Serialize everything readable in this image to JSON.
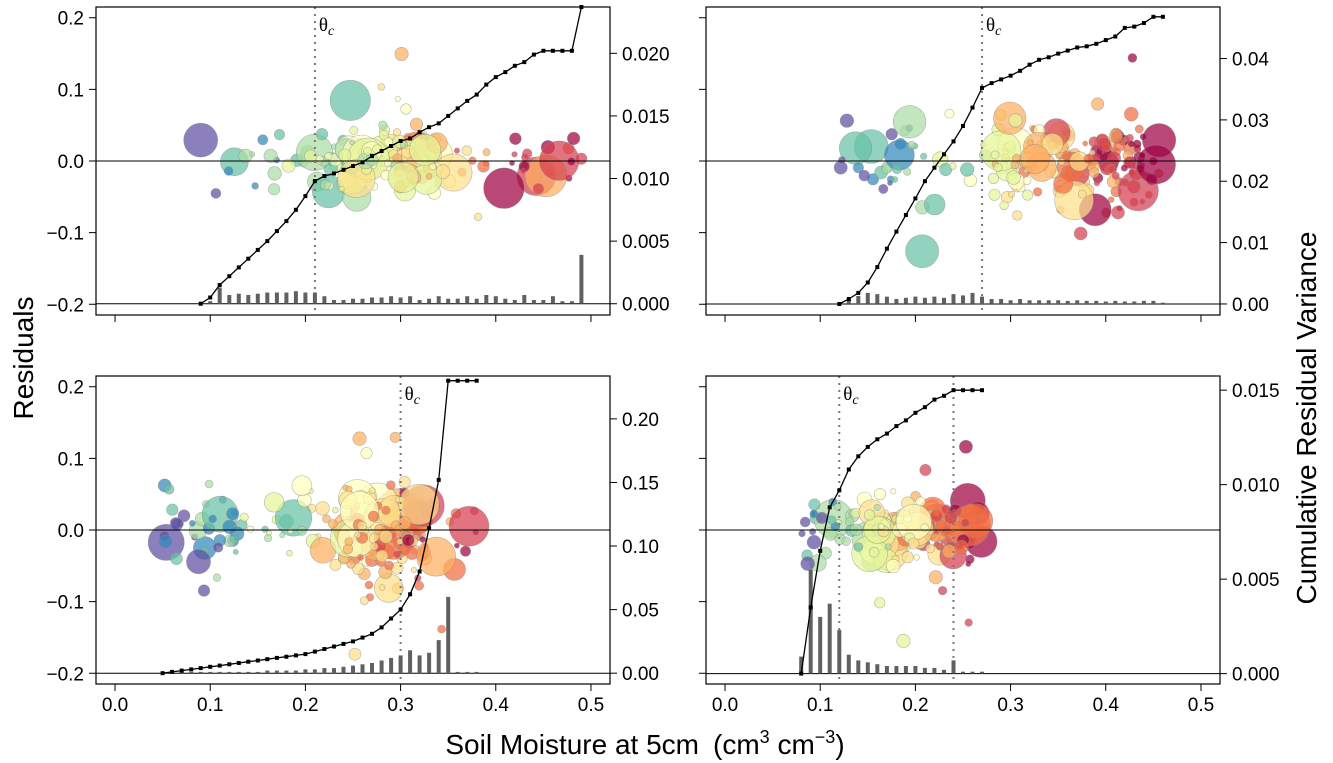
{
  "figure": {
    "ylabel_left": "Residuals",
    "ylabel_right": "Cumulative Residual Variance",
    "xlabel_main": "Soil Moisture at 5cm",
    "xlabel_unit_open": "(cm",
    "xlabel_unit_exp1": "3",
    "xlabel_unit_mid": " cm",
    "xlabel_unit_exp2": "−3",
    "xlabel_unit_close": ")",
    "theta_symbol": "θ",
    "theta_sub": "c",
    "point_palette": [
      "#9e0142",
      "#d53e4f",
      "#f46d43",
      "#fdae61",
      "#fee08b",
      "#ffffbf",
      "#e6f598",
      "#abdda4",
      "#66c2a5",
      "#3288bd",
      "#5e4fa2"
    ],
    "line_color": "#000000",
    "bar_color": "#606060"
  },
  "chart_data": [
    {
      "type": "scatter",
      "panel": "top-left",
      "xlim": [
        -0.02,
        0.52
      ],
      "ylim": [
        -0.215,
        0.215
      ],
      "y2lim": [
        -0.0009,
        0.0237
      ],
      "x_ticks": [
        "0.0",
        "0.1",
        "0.2",
        "0.3",
        "0.4",
        "0.5"
      ],
      "x_tick_values": [
        0,
        0.1,
        0.2,
        0.3,
        0.4,
        0.5
      ],
      "show_x_tick_labels": false,
      "y_ticks": [
        "0.2",
        "0.1",
        "0.0",
        "−0.1",
        "−0.2"
      ],
      "y_tick_values": [
        0.2,
        0.1,
        0,
        -0.1,
        -0.2
      ],
      "y2_ticks": [
        "0.020",
        "0.015",
        "0.010",
        "0.005",
        "0.000"
      ],
      "y2_tick_values": [
        0.02,
        0.015,
        0.01,
        0.005,
        0.0
      ],
      "theta_c": [
        0.21
      ],
      "theta_label_at": 0.21,
      "cumulative_curve": {
        "x": [
          0.09,
          0.1,
          0.11,
          0.12,
          0.13,
          0.14,
          0.15,
          0.16,
          0.17,
          0.18,
          0.19,
          0.2,
          0.21,
          0.22,
          0.23,
          0.24,
          0.25,
          0.26,
          0.27,
          0.28,
          0.29,
          0.3,
          0.31,
          0.32,
          0.33,
          0.34,
          0.35,
          0.36,
          0.37,
          0.38,
          0.39,
          0.4,
          0.41,
          0.42,
          0.43,
          0.44,
          0.45,
          0.46,
          0.47,
          0.48,
          0.49
        ],
        "y": [
          0.0,
          0.0005,
          0.0015,
          0.0022,
          0.0029,
          0.0036,
          0.0043,
          0.005,
          0.0058,
          0.0066,
          0.0075,
          0.0086,
          0.0098,
          0.0102,
          0.0104,
          0.0107,
          0.011,
          0.0113,
          0.0118,
          0.0122,
          0.0126,
          0.013,
          0.0132,
          0.0137,
          0.0141,
          0.0144,
          0.015,
          0.0156,
          0.0162,
          0.0167,
          0.0175,
          0.0181,
          0.0185,
          0.019,
          0.0193,
          0.0199,
          0.0202,
          0.0202,
          0.0202,
          0.0202,
          0.0237
        ]
      },
      "variance_bars": {
        "x": [
          0.1,
          0.11,
          0.12,
          0.13,
          0.14,
          0.15,
          0.16,
          0.17,
          0.18,
          0.19,
          0.2,
          0.21,
          0.22,
          0.23,
          0.24,
          0.25,
          0.26,
          0.27,
          0.28,
          0.29,
          0.3,
          0.31,
          0.32,
          0.33,
          0.34,
          0.35,
          0.36,
          0.37,
          0.38,
          0.39,
          0.4,
          0.41,
          0.42,
          0.43,
          0.44,
          0.45,
          0.46,
          0.47,
          0.48,
          0.49
        ],
        "y": [
          0.0002,
          0.0013,
          0.0007,
          0.0008,
          0.0007,
          0.0008,
          0.0009,
          0.0009,
          0.0009,
          0.001,
          0.0009,
          0.0009,
          0.0006,
          0.0003,
          0.0003,
          0.0004,
          0.0004,
          0.0005,
          0.0005,
          0.0006,
          0.0005,
          0.0006,
          0.0003,
          0.0004,
          0.0006,
          0.0004,
          0.0004,
          0.0006,
          0.0004,
          0.0007,
          0.0006,
          0.0004,
          0.0003,
          0.0007,
          0.0003,
          0.0003,
          0.0006,
          0.0002,
          0.0002,
          0.0039
        ]
      },
      "scatter": {
        "x_range": [
          0.09,
          0.49
        ],
        "core": [
          0.22,
          0.34
        ],
        "y_center": 0.002,
        "spread": 0.03,
        "count": 190,
        "seed": 11
      }
    },
    {
      "type": "scatter",
      "panel": "top-right",
      "xlim": [
        -0.02,
        0.52
      ],
      "ylim": [
        -0.215,
        0.215
      ],
      "y2lim": [
        -0.0018,
        0.0484
      ],
      "x_ticks": [
        "0.0",
        "0.1",
        "0.2",
        "0.3",
        "0.4",
        "0.5"
      ],
      "x_tick_values": [
        0,
        0.1,
        0.2,
        0.3,
        0.4,
        0.5
      ],
      "show_x_tick_labels": false,
      "y_ticks": [],
      "y_tick_values": [
        0.2,
        0.1,
        0,
        -0.1,
        -0.2
      ],
      "y2_ticks": [
        "0.04",
        "0.03",
        "0.02",
        "0.01",
        "0.00"
      ],
      "y2_tick_values": [
        0.04,
        0.03,
        0.02,
        0.01,
        0.0
      ],
      "theta_c": [
        0.27
      ],
      "theta_label_at": 0.27,
      "cumulative_curve": {
        "x": [
          0.12,
          0.13,
          0.14,
          0.15,
          0.16,
          0.17,
          0.18,
          0.19,
          0.2,
          0.21,
          0.22,
          0.23,
          0.24,
          0.25,
          0.26,
          0.27,
          0.28,
          0.29,
          0.3,
          0.31,
          0.32,
          0.33,
          0.34,
          0.35,
          0.36,
          0.37,
          0.38,
          0.39,
          0.4,
          0.41,
          0.42,
          0.43,
          0.44,
          0.45,
          0.46
        ],
        "y": [
          0.0,
          0.0008,
          0.0018,
          0.0035,
          0.006,
          0.009,
          0.0118,
          0.0145,
          0.0172,
          0.02,
          0.0222,
          0.0244,
          0.0265,
          0.029,
          0.032,
          0.0352,
          0.036,
          0.0366,
          0.0372,
          0.038,
          0.039,
          0.0398,
          0.0402,
          0.0408,
          0.0413,
          0.0418,
          0.042,
          0.0424,
          0.043,
          0.0436,
          0.045,
          0.0452,
          0.0458,
          0.0468,
          0.0468
        ]
      },
      "variance_bars": {
        "x": [
          0.13,
          0.14,
          0.15,
          0.16,
          0.17,
          0.18,
          0.19,
          0.2,
          0.21,
          0.22,
          0.23,
          0.24,
          0.25,
          0.26,
          0.27,
          0.28,
          0.29,
          0.3,
          0.31,
          0.32,
          0.33,
          0.34,
          0.35,
          0.36,
          0.37,
          0.38,
          0.39,
          0.4,
          0.41,
          0.42,
          0.43,
          0.44,
          0.45,
          0.46
        ],
        "y": [
          0.0008,
          0.0013,
          0.0018,
          0.0016,
          0.0012,
          0.0008,
          0.001,
          0.0012,
          0.001,
          0.0012,
          0.001,
          0.0016,
          0.0014,
          0.0018,
          0.0012,
          0.0008,
          0.0008,
          0.0006,
          0.0008,
          0.0006,
          0.0006,
          0.0006,
          0.0006,
          0.0005,
          0.0006,
          0.0005,
          0.0005,
          0.0004,
          0.0005,
          0.0004,
          0.0004,
          0.0005,
          0.0005,
          0.0002
        ]
      },
      "scatter": {
        "x_range": [
          0.12,
          0.46
        ],
        "core": [
          0.28,
          0.44
        ],
        "y_center": 0.0,
        "spread": 0.04,
        "count": 210,
        "seed": 23
      }
    },
    {
      "type": "scatter",
      "panel": "bottom-left",
      "xlim": [
        -0.02,
        0.52
      ],
      "ylim": [
        -0.215,
        0.215
      ],
      "y2lim": [
        -0.0085,
        0.2337
      ],
      "x_ticks": [
        "0.0",
        "0.1",
        "0.2",
        "0.3",
        "0.4",
        "0.5"
      ],
      "x_tick_values": [
        0,
        0.1,
        0.2,
        0.3,
        0.4,
        0.5
      ],
      "show_x_tick_labels": true,
      "y_ticks": [
        "0.2",
        "0.1",
        "0.0",
        "−0.1",
        "−0.2"
      ],
      "y_tick_values": [
        0.2,
        0.1,
        0,
        -0.1,
        -0.2
      ],
      "y2_ticks": [
        "0.20",
        "0.15",
        "0.10",
        "0.05",
        "0.00"
      ],
      "y2_tick_values": [
        0.2,
        0.15,
        0.1,
        0.05,
        0.0
      ],
      "theta_c": [
        0.3
      ],
      "theta_label_at": 0.3,
      "cumulative_curve": {
        "x": [
          0.05,
          0.06,
          0.07,
          0.08,
          0.09,
          0.1,
          0.11,
          0.12,
          0.13,
          0.14,
          0.15,
          0.16,
          0.17,
          0.18,
          0.19,
          0.2,
          0.21,
          0.22,
          0.23,
          0.24,
          0.25,
          0.26,
          0.27,
          0.28,
          0.29,
          0.3,
          0.31,
          0.32,
          0.33,
          0.34,
          0.35,
          0.36,
          0.37,
          0.38
        ],
        "y": [
          0.0,
          0.001,
          0.002,
          0.003,
          0.004,
          0.005,
          0.006,
          0.007,
          0.008,
          0.009,
          0.01,
          0.011,
          0.012,
          0.013,
          0.014,
          0.015,
          0.017,
          0.019,
          0.021,
          0.023,
          0.025,
          0.028,
          0.031,
          0.036,
          0.043,
          0.05,
          0.062,
          0.08,
          0.114,
          0.152,
          0.23,
          0.23,
          0.23,
          0.23
        ]
      },
      "variance_bars": {
        "x": [
          0.05,
          0.06,
          0.07,
          0.08,
          0.09,
          0.1,
          0.11,
          0.12,
          0.13,
          0.14,
          0.15,
          0.16,
          0.17,
          0.18,
          0.19,
          0.2,
          0.21,
          0.22,
          0.23,
          0.24,
          0.25,
          0.26,
          0.27,
          0.28,
          0.29,
          0.3,
          0.31,
          0.32,
          0.33,
          0.34,
          0.35,
          0.36,
          0.37,
          0.38
        ],
        "y": [
          0.001,
          0.001,
          0.001,
          0.001,
          0.001,
          0.001,
          0.001,
          0.001,
          0.001,
          0.001,
          0.001,
          0.002,
          0.002,
          0.002,
          0.002,
          0.003,
          0.003,
          0.004,
          0.004,
          0.005,
          0.006,
          0.007,
          0.008,
          0.01,
          0.012,
          0.014,
          0.018,
          0.014,
          0.016,
          0.026,
          0.06,
          0.001,
          0.001,
          0.001
        ]
      },
      "scatter": {
        "x_range": [
          0.05,
          0.38
        ],
        "core": [
          0.24,
          0.33
        ],
        "y_center": 0.0,
        "spread": 0.045,
        "count": 240,
        "seed": 37
      }
    },
    {
      "type": "scatter",
      "panel": "bottom-right",
      "xlim": [
        -0.02,
        0.52
      ],
      "ylim": [
        -0.215,
        0.215
      ],
      "y2lim": [
        -0.00055,
        0.01575
      ],
      "x_ticks": [
        "0.0",
        "0.1",
        "0.2",
        "0.3",
        "0.4",
        "0.5"
      ],
      "x_tick_values": [
        0,
        0.1,
        0.2,
        0.3,
        0.4,
        0.5
      ],
      "show_x_tick_labels": true,
      "y_ticks": [],
      "y_tick_values": [
        0.2,
        0.1,
        0,
        -0.1,
        -0.2
      ],
      "y2_ticks": [
        "0.015",
        "0.010",
        "0.005",
        "0.000"
      ],
      "y2_tick_values": [
        0.015,
        0.01,
        0.005,
        0.0
      ],
      "theta_c": [
        0.12,
        0.24
      ],
      "theta_label_at": 0.12,
      "cumulative_curve": {
        "x": [
          0.08,
          0.09,
          0.1,
          0.11,
          0.12,
          0.13,
          0.14,
          0.15,
          0.16,
          0.17,
          0.18,
          0.19,
          0.2,
          0.21,
          0.22,
          0.23,
          0.24,
          0.25,
          0.26,
          0.27
        ],
        "y": [
          0.0,
          0.0035,
          0.0065,
          0.0088,
          0.0097,
          0.0108,
          0.0115,
          0.012,
          0.0124,
          0.0127,
          0.0131,
          0.0134,
          0.0138,
          0.0141,
          0.0145,
          0.0147,
          0.015,
          0.015,
          0.015,
          0.015
        ]
      },
      "variance_bars": {
        "x": [
          0.08,
          0.09,
          0.1,
          0.11,
          0.12,
          0.13,
          0.14,
          0.15,
          0.16,
          0.17,
          0.18,
          0.19,
          0.2,
          0.21,
          0.22,
          0.23,
          0.24,
          0.25,
          0.26,
          0.27
        ],
        "y": [
          0.0009,
          0.0055,
          0.003,
          0.0037,
          0.0023,
          0.001,
          0.0007,
          0.0006,
          0.0005,
          0.0004,
          0.0004,
          0.0004,
          0.0004,
          0.0003,
          0.0003,
          0.0002,
          0.0007,
          0.0001,
          0.0001,
          0.0001
        ]
      },
      "scatter": {
        "x_range": [
          0.08,
          0.27
        ],
        "core": [
          0.15,
          0.26
        ],
        "y_center": 0.0,
        "spread": 0.03,
        "count": 200,
        "seed": 53
      }
    }
  ]
}
